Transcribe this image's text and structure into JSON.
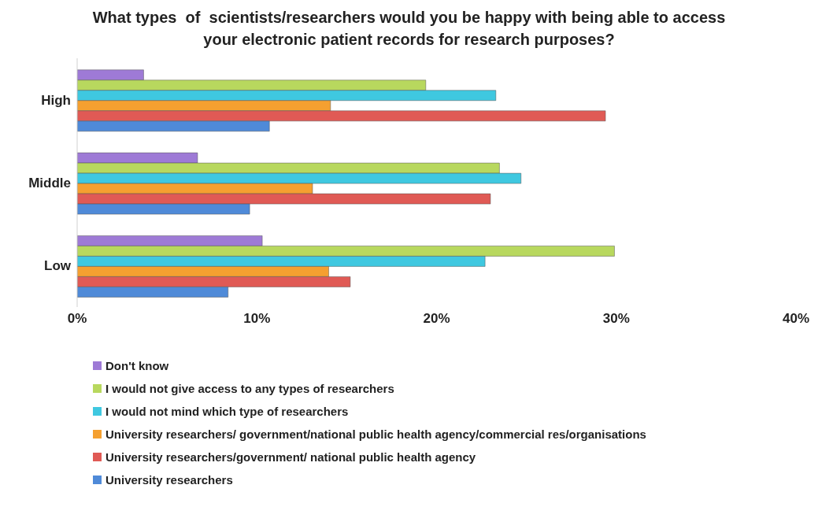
{
  "chart_data": {
    "type": "bar",
    "orientation": "horizontal",
    "title": "What types  of  scientists/researchers would you be happy with being able to access your electronic patient records for research purposes?",
    "categories": [
      "High",
      "Middle",
      "Low"
    ],
    "series": [
      {
        "name": "Don't know",
        "color": "#9e7ad6",
        "values": [
          3.7,
          6.7,
          10.3
        ]
      },
      {
        "name": "I would not give access to any types of researchers",
        "color": "#b8d85e",
        "values": [
          19.4,
          23.5,
          29.9
        ]
      },
      {
        "name": "I would not mind which type of researchers",
        "color": "#3fc8e0",
        "values": [
          23.3,
          24.7,
          22.7
        ]
      },
      {
        "name": "University researchers/ government/national public health agency/commercial res/organisations",
        "color": "#f5a030",
        "values": [
          14.1,
          13.1,
          14.0
        ]
      },
      {
        "name": "University researchers/government/ national public health agency",
        "color": "#e05a55",
        "values": [
          29.4,
          23.0,
          15.2
        ]
      },
      {
        "name": "University researchers",
        "color": "#4f8ad8",
        "values": [
          10.7,
          9.6,
          8.4
        ]
      }
    ],
    "xlim": [
      0,
      40
    ],
    "xticks": [
      {
        "value": 0,
        "label": "0%"
      },
      {
        "value": 10,
        "label": "10%"
      },
      {
        "value": 20,
        "label": "20%"
      },
      {
        "value": 30,
        "label": "30%"
      },
      {
        "value": 40,
        "label": "40%"
      }
    ],
    "grid": false,
    "legend": "bottom"
  }
}
